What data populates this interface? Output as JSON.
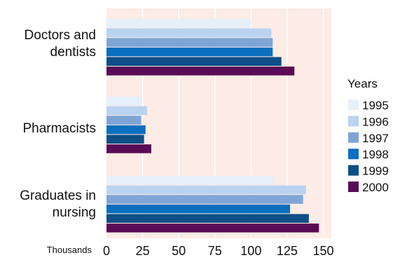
{
  "chart_data": {
    "type": "bar",
    "orientation": "horizontal",
    "title": "",
    "xlabel": "Thousands",
    "ylabel": "",
    "xlim": [
      0,
      155
    ],
    "xticks": [
      0,
      25,
      50,
      75,
      100,
      125,
      150
    ],
    "grid": true,
    "categories": [
      "Doctors and dentists",
      "Pharmacists",
      "Graduates in nursing"
    ],
    "category_lines": [
      [
        "Doctors and",
        "dentists"
      ],
      [
        "Pharmacists"
      ],
      [
        "Graduates in",
        "nursing"
      ]
    ],
    "legend": {
      "title": "Years",
      "placement": "right"
    },
    "series": [
      {
        "name": "1995",
        "color": "#e6f0fb",
        "values": [
          100,
          24,
          116
        ]
      },
      {
        "name": "1996",
        "color": "#b9d3f0",
        "values": [
          114,
          28,
          138
        ]
      },
      {
        "name": "1997",
        "color": "#7fa5d6",
        "values": [
          115,
          24,
          136
        ]
      },
      {
        "name": "1998",
        "color": "#0b6fbf",
        "values": [
          115,
          27,
          127
        ]
      },
      {
        "name": "1999",
        "color": "#0d4f86",
        "values": [
          121,
          26,
          140
        ]
      },
      {
        "name": "2000",
        "color": "#5a0b55",
        "values": [
          130,
          31,
          147
        ]
      }
    ],
    "colors": {
      "plot_background": "#fdebe5",
      "gridline": "#ffffff"
    }
  }
}
